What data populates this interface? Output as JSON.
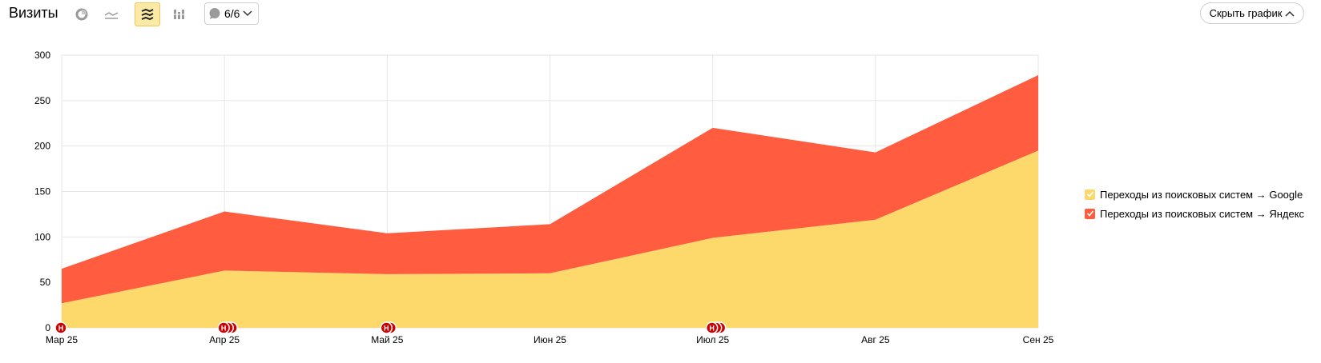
{
  "header": {
    "title": "Визиты",
    "notes_label": "6/6",
    "hide_chart_label": "Скрыть график"
  },
  "icons": {
    "pie": "pie-chart-icon",
    "line": "line-chart-icon",
    "stacked": "stacked-area-icon",
    "bars": "stacked-bar-icon",
    "comment": "comment-icon",
    "chevron_down": "chevron-down-icon",
    "chevron_up": "chevron-up-icon"
  },
  "colors": {
    "google": "#fdd86b",
    "yandex": "#ff5c40",
    "marker": "#cc0000",
    "active_bg": "#fde9a6"
  },
  "chart_data": {
    "type": "area",
    "stacked": true,
    "categories": [
      "Мар 25",
      "Апр 25",
      "Май 25",
      "Июн 25",
      "Июл 25",
      "Авг 25",
      "Сен 25"
    ],
    "series": [
      {
        "name": "Переходы из поисковых систем → Google",
        "values": [
          27,
          63,
          59,
          60,
          99,
          119,
          195
        ],
        "color": "#fdd86b"
      },
      {
        "name": "Переходы из поисковых систем → Яндекс",
        "values": [
          38,
          65,
          45,
          54,
          121,
          74,
          83
        ],
        "color": "#ff5c40"
      }
    ],
    "y_ticks": [
      "0",
      "50",
      "100",
      "150",
      "200",
      "250",
      "300"
    ],
    "ylim": [
      0,
      300
    ],
    "grid": true,
    "legend_position": "right",
    "markers": [
      {
        "category": "Мар 25",
        "count": 1,
        "label": "Н"
      },
      {
        "category": "Апр 25",
        "count": 3,
        "label": "Н"
      },
      {
        "category": "Май 25",
        "count": 2,
        "label": "Н"
      },
      {
        "category": "Июл 25",
        "count": 3,
        "label": "Н"
      }
    ]
  }
}
